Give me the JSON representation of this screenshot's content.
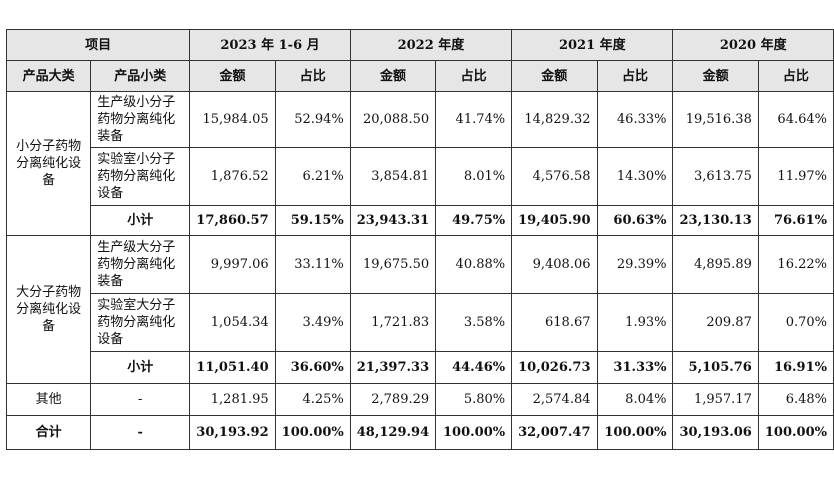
{
  "header": {
    "item": "项目",
    "periods": [
      "2023 年 1-6 月",
      "2022 年度",
      "2021 年度",
      "2020 年度"
    ],
    "category_big": "产品大类",
    "category_small": "产品小类",
    "amount": "金额",
    "ratio": "占比"
  },
  "groups": [
    {
      "name": "小分子药物分离纯化设备",
      "rows": [
        {
          "sub": "生产级小分子药物分离纯化装备",
          "values": [
            "15,984.05",
            "52.94%",
            "20,088.50",
            "41.74%",
            "14,829.32",
            "46.33%",
            "19,516.38",
            "64.64%"
          ]
        },
        {
          "sub": "实验室小分子药物分离纯化设备",
          "values": [
            "1,876.52",
            "6.21%",
            "3,854.81",
            "8.01%",
            "4,576.58",
            "14.30%",
            "3,613.75",
            "11.97%"
          ]
        }
      ],
      "subtotal": {
        "label": "小计",
        "values": [
          "17,860.57",
          "59.15%",
          "23,943.31",
          "49.75%",
          "19,405.90",
          "60.63%",
          "23,130.13",
          "76.61%"
        ]
      }
    },
    {
      "name": "大分子药物分离纯化设备",
      "rows": [
        {
          "sub": "生产级大分子药物分离纯化装备",
          "values": [
            "9,997.06",
            "33.11%",
            "19,675.50",
            "40.88%",
            "9,408.06",
            "29.39%",
            "4,895.89",
            "16.22%"
          ]
        },
        {
          "sub": "实验室大分子药物分离纯化设备",
          "values": [
            "1,054.34",
            "3.49%",
            "1,721.83",
            "3.58%",
            "618.67",
            "1.93%",
            "209.87",
            "0.70%"
          ]
        }
      ],
      "subtotal": {
        "label": "小计",
        "values": [
          "11,051.40",
          "36.60%",
          "21,397.33",
          "44.46%",
          "10,026.73",
          "31.33%",
          "5,105.76",
          "16.91%"
        ]
      }
    }
  ],
  "other": {
    "label": "其他",
    "sub": "-",
    "values": [
      "1,281.95",
      "4.25%",
      "2,789.29",
      "5.80%",
      "2,574.84",
      "8.04%",
      "1,957.17",
      "6.48%"
    ]
  },
  "total": {
    "label": "合计",
    "sub": "-",
    "values": [
      "30,193.92",
      "100.00%",
      "48,129.94",
      "100.00%",
      "32,007.47",
      "100.00%",
      "30,193.06",
      "100.00%"
    ]
  }
}
